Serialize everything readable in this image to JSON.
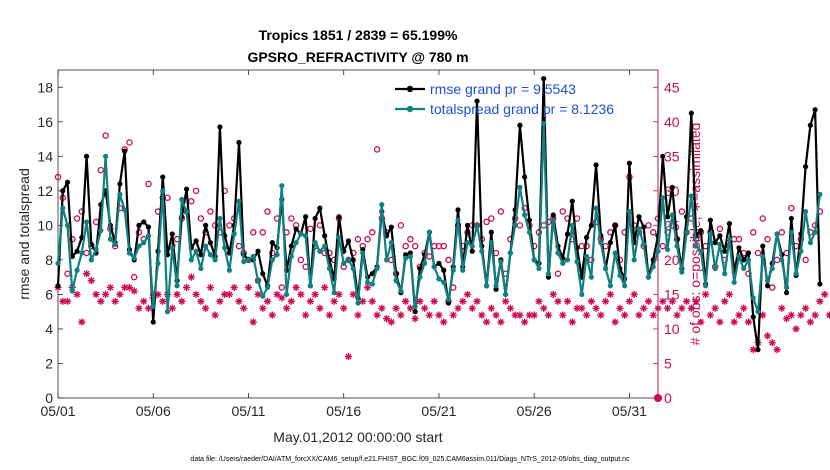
{
  "chart_data": {
    "type": "line",
    "title_line1": "Tropics 1851 / 2839 = 65.199%",
    "title_line2": "GPSRO_REFRACTIVITY @ 780 m",
    "xlabel": "May.01,2012 00:00:00 start",
    "ylabel_left": "rmse and totalspread",
    "ylabel_right": "# of obs: o=possible; ∗=assimilated",
    "footer": "data file: /Users/raeder/DAI/ATM_forcXX/CAM6_setup/f.e21.FHIST_BGC.f09_025.CAM6assim.011/Diags_NTrS_2012-05/obs_diag_output.nc",
    "xlim": [
      0,
      31.5
    ],
    "ylim_left": [
      0,
      19
    ],
    "ylim_right": [
      0,
      47.5
    ],
    "x_ticks": [
      0,
      5,
      10,
      15,
      20,
      25,
      30
    ],
    "x_tick_labels": [
      "05/01",
      "05/06",
      "05/11",
      "05/16",
      "05/21",
      "05/26",
      "05/31"
    ],
    "y_ticks_left": [
      0,
      2,
      4,
      6,
      8,
      10,
      12,
      14,
      16,
      18
    ],
    "y_ticks_right": [
      0,
      5,
      10,
      15,
      20,
      25,
      30,
      35,
      40,
      45
    ],
    "colors": {
      "rmse": "#000000",
      "totalspread": "#108080",
      "obs_count": "#cc0a55",
      "legend_text": "#1f4fd8",
      "axis": "#262626"
    },
    "legend": [
      {
        "name": "rmse",
        "label": "rmse grand pr = 9.5543"
      },
      {
        "name": "totalspread",
        "label": "totalspread grand pr = 8.1236"
      }
    ],
    "series": [
      {
        "name": "rmse",
        "axis": "left",
        "x0": 0,
        "dx": 0.25,
        "values": [
          6.5,
          12.0,
          12.5,
          8.2,
          8.5,
          9.3,
          14.0,
          8.9,
          8.4,
          11.2,
          12.0,
          10.0,
          9.0,
          12.4,
          14.3,
          8.6,
          8.0,
          10.0,
          10.2,
          9.9,
          4.4,
          8.5,
          12.8,
          8.3,
          9.5,
          6.8,
          10.5,
          12.1,
          8.7,
          9.1,
          8.3,
          10.0,
          9.0,
          8.2,
          15.7,
          9.4,
          8.4,
          10.0,
          14.8,
          8.3,
          8.0,
          8.0,
          8.5,
          7.2,
          6.5,
          9.0,
          8.7,
          11.5,
          7.4,
          8.8,
          9.8,
          9.5,
          10.5,
          6.5,
          10.4,
          11.0,
          9.4,
          8.0,
          6.9,
          10.5,
          8.5,
          9.1,
          8.0,
          5.8,
          8.6,
          7.0,
          7.2,
          7.6,
          10.8,
          9.4,
          9.9,
          7.2,
          6.1,
          8.3,
          8.4,
          5.0,
          7.5,
          8.3,
          9.6,
          7.6,
          7.8,
          7.4,
          5.5,
          7.6,
          10.9,
          7.6,
          10.0,
          8.5,
          17.2,
          8.8,
          6.5,
          9.6,
          6.3,
          8.0,
          6.0,
          8.4,
          10.9,
          15.8,
          12.8,
          10.3,
          8.0,
          7.8,
          18.5,
          7.0,
          10.6,
          8.8,
          8.1,
          9.5,
          11.4,
          8.7,
          7.0,
          9.3,
          10.0,
          13.5,
          9.4,
          7.5,
          9.0,
          10.0,
          7.5,
          6.9,
          13.6,
          9.0,
          10.5,
          9.9,
          7.0,
          8.0,
          9.4,
          14.0,
          10.5,
          12.2,
          9.2,
          7.5,
          10.5,
          16.5,
          9.4,
          9.7,
          6.6,
          10.3,
          9.0,
          9.4,
          8.5,
          10.1,
          7.3,
          8.7,
          8.0,
          8.4,
          4.7,
          2.8,
          8.8,
          6.5,
          7.8,
          9.5,
          8.3,
          6.1,
          10.4,
          7.1,
          9.5,
          13.4,
          15.8,
          16.7,
          6.6
        ]
      },
      {
        "name": "totalspread",
        "axis": "left",
        "x0": 0,
        "dx": 0.25,
        "values": [
          7.8,
          11.0,
          10.0,
          6.2,
          7.4,
          8.4,
          10.2,
          8.0,
          8.6,
          9.7,
          14.0,
          9.2,
          8.9,
          11.8,
          10.9,
          8.4,
          8.1,
          8.8,
          9.0,
          9.4,
          5.3,
          7.8,
          12.0,
          5.0,
          8.7,
          6.5,
          11.5,
          10.8,
          8.0,
          8.5,
          7.5,
          8.8,
          8.3,
          8.0,
          10.4,
          8.7,
          7.4,
          9.5,
          11.4,
          7.9,
          8.0,
          8.2,
          6.8,
          5.9,
          6.4,
          8.0,
          8.3,
          12.3,
          6.0,
          8.2,
          9.0,
          9.5,
          9.4,
          6.5,
          9.0,
          8.5,
          8.8,
          7.5,
          6.1,
          9.3,
          7.8,
          8.0,
          7.5,
          5.5,
          8.4,
          6.7,
          6.6,
          7.5,
          11.2,
          8.0,
          9.0,
          6.8,
          6.2,
          8.1,
          8.2,
          5.3,
          7.0,
          7.8,
          9.6,
          7.6,
          6.9,
          6.7,
          5.7,
          7.4,
          10.3,
          7.4,
          9.0,
          8.8,
          10.0,
          8.5,
          6.5,
          9.0,
          6.5,
          7.9,
          6.0,
          8.4,
          10.0,
          12.2,
          10.6,
          9.6,
          8.0,
          7.5,
          15.9,
          7.2,
          10.3,
          8.4,
          7.8,
          8.0,
          10.0,
          7.9,
          6.0,
          8.2,
          7.0,
          11.0,
          9.0,
          7.5,
          6.5,
          8.4,
          7.1,
          6.5,
          10.8,
          8.0,
          9.8,
          8.9,
          7.0,
          7.6,
          8.5,
          11.6,
          8.6,
          10.6,
          8.8,
          7.3,
          9.6,
          11.7,
          8.8,
          8.5,
          6.5,
          9.5,
          7.5,
          8.9,
          7.2,
          9.2,
          6.7,
          8.2,
          7.5,
          8.0,
          5.8,
          5.0,
          8.2,
          6.8,
          7.5,
          9.5,
          8.0,
          6.4,
          9.6,
          7.2,
          8.5,
          10.8,
          9.0,
          9.6,
          11.8
        ]
      },
      {
        "name": "obs_possible",
        "axis": "right",
        "marker": "o",
        "x0": 0,
        "dx": 0.25,
        "values": [
          32.0,
          29.0,
          18.0,
          23.0,
          26.0,
          27.0,
          21.0,
          22.0,
          25.5,
          33.0,
          38.0,
          24.5,
          22.0,
          27.5,
          36.0,
          37.0,
          17.5,
          24.0,
          23.0,
          31.0,
          15.0,
          27.0,
          29.0,
          29.0,
          22.0,
          23.0,
          26.0,
          27.0,
          28.5,
          30.0,
          26.0,
          24.0,
          27.0,
          25.0,
          24.0,
          30.0,
          25.0,
          26.0,
          22.0,
          21.0,
          20.0,
          24.0,
          17.0,
          24.0,
          27.0,
          21.0,
          26.0,
          16.0,
          24.0,
          26.0,
          25.0,
          20.0,
          19.0,
          24.5,
          22.0,
          25.0,
          21.0,
          21.0,
          20.0,
          26.0,
          19.0,
          20.0,
          21.0,
          23.0,
          22.0,
          23.0,
          24.0,
          36.0,
          26.0,
          24.0,
          20.0,
          18.0,
          25.0,
          22.0,
          23.0,
          22.0,
          19.0,
          21.0,
          20.5,
          22.0,
          22.0,
          22.0,
          20.0,
          16.0,
          25.0,
          22.0,
          24.0,
          25.0,
          25.0,
          23.0,
          25.5,
          26.0,
          21.0,
          27.0,
          18.0,
          23.0,
          26.0,
          25.0,
          27.5,
          25.0,
          22.0,
          24.0,
          25.0,
          25.5,
          26.0,
          18.0,
          27.0,
          26.0,
          23.0,
          26.0,
          22.0,
          22.0,
          20.0,
          25.5,
          23.0,
          22.0,
          24.0,
          25.0,
          20.0,
          24.0,
          32.0,
          25.0,
          24.0,
          22.0,
          25.0,
          24.0,
          26.0,
          22.0,
          24.0,
          25.0,
          23.0,
          27.0,
          24.0,
          26.0,
          23.0,
          24.0,
          22.0,
          24.0,
          19.0,
          24.5,
          20.0,
          22.0,
          23.0,
          23.0,
          21.0,
          18.0,
          24.0,
          21.0,
          26.0,
          23.0,
          16.0,
          20.0,
          24.0,
          21.0,
          27.5,
          22.0,
          23.0,
          20.0,
          24.0,
          25.0,
          27.0
        ]
      },
      {
        "name": "obs_assimilated",
        "axis": "right",
        "marker": "asterisk",
        "x0": 0,
        "dx": 0.25,
        "values": [
          16.0,
          14.0,
          14.0,
          16.0,
          15.0,
          11.0,
          18.0,
          17.0,
          15.0,
          14.0,
          15.0,
          16.0,
          14.0,
          15.0,
          16.0,
          16.0,
          15.5,
          13.0,
          14.0,
          13.0,
          14.5,
          15.0,
          14.0,
          15.0,
          13.0,
          15.0,
          14.0,
          16.0,
          17.5,
          15.0,
          14.0,
          13.0,
          16.0,
          12.0,
          14.0,
          15.0,
          15.0,
          16.0,
          14.0,
          13.0,
          16.0,
          11.0,
          15.0,
          13.0,
          14.0,
          12.0,
          15.0,
          14.5,
          13.0,
          14.0,
          16.0,
          15.0,
          12.0,
          14.0,
          15.0,
          13.0,
          16.0,
          12.0,
          14.0,
          15.0,
          13.0,
          6.0,
          15.0,
          12.0,
          14.0,
          16.0,
          14.0,
          12.0,
          13.0,
          11.5,
          11.0,
          13.0,
          12.0,
          14.0,
          13.0,
          11.5,
          14.0,
          13.0,
          12.0,
          14.0,
          12.0,
          11.0,
          14.0,
          12.0,
          13.0,
          14.0,
          15.0,
          13.0,
          14.0,
          12.0,
          11.0,
          13.0,
          12.0,
          11.0,
          14.0,
          13.0,
          12.0,
          12.0,
          11.0,
          12.0,
          12.0,
          14.0,
          13.0,
          12.0,
          15.0,
          14.0,
          12.0,
          14.0,
          11.0,
          13.0,
          13.0,
          12.0,
          14.0,
          13.0,
          12.0,
          14.0,
          15.0,
          11.0,
          13.0,
          12.0,
          14.0,
          15.0,
          12.0,
          13.0,
          14.0,
          12.0,
          13.0,
          14.0,
          13.0,
          14.0,
          12.0,
          13.0,
          14.0,
          13.0,
          14.0,
          11.0,
          15.0,
          12.0,
          13.0,
          11.0,
          14.0,
          15.0,
          11.0,
          12.0,
          13.0,
          11.0,
          7.0,
          8.0,
          12.0,
          9.0,
          8.0,
          7.0,
          13.0,
          11.5,
          12.0,
          10.0,
          12.0,
          13.0,
          11.0,
          12.0,
          14.0,
          15.0,
          12.0
        ]
      }
    ]
  }
}
